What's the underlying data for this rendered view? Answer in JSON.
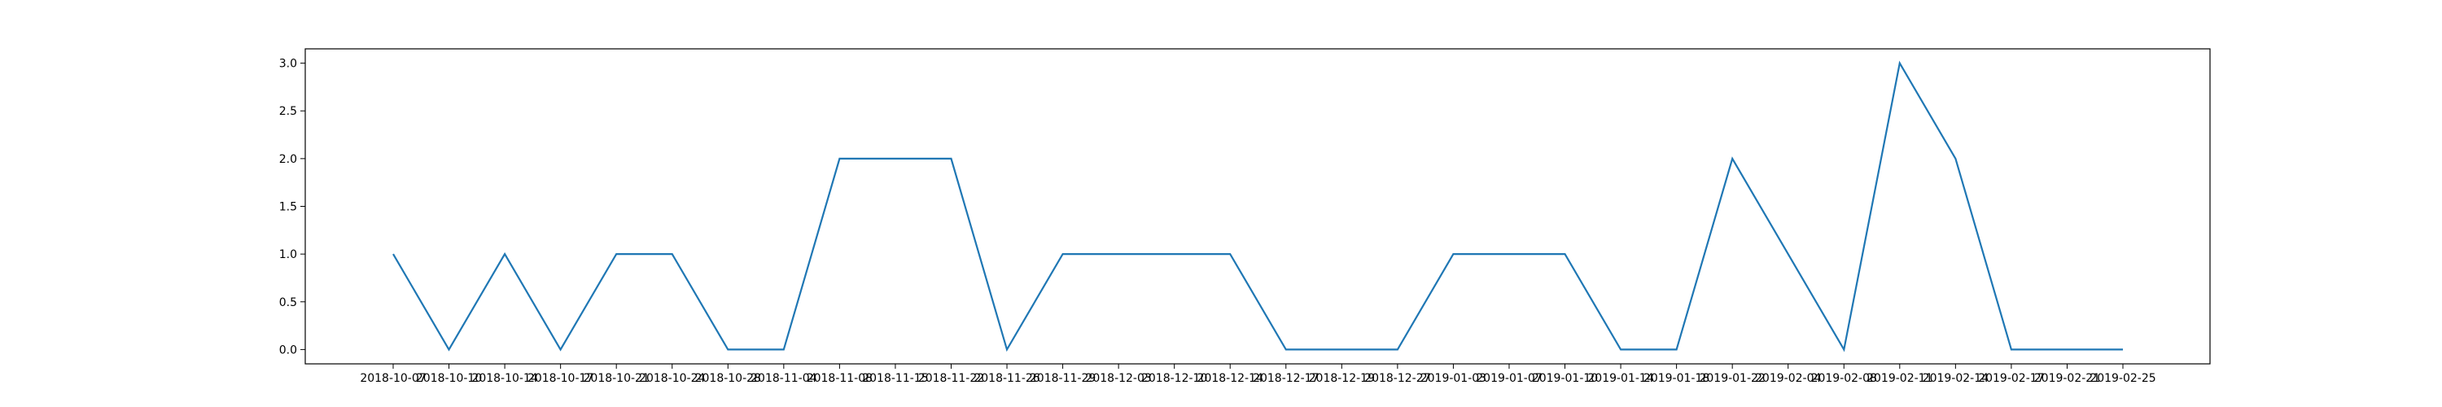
{
  "chart_data": {
    "type": "line",
    "title": "",
    "xlabel": "",
    "ylabel": "",
    "categories": [
      "2018-10-07",
      "2018-10-10",
      "2018-10-14",
      "2018-10-17",
      "2018-10-21",
      "2018-10-24",
      "2018-10-28",
      "2018-11-04",
      "2018-11-08",
      "2018-11-15",
      "2018-11-22",
      "2018-11-26",
      "2018-11-29",
      "2018-12-03",
      "2018-12-10",
      "2018-12-14",
      "2018-12-17",
      "2018-12-19",
      "2018-12-27",
      "2019-01-03",
      "2019-01-07",
      "2019-01-10",
      "2019-01-14",
      "2019-01-18",
      "2019-01-22",
      "2019-02-04",
      "2019-02-08",
      "2019-02-11",
      "2019-02-14",
      "2019-02-17",
      "2019-02-21",
      "2019-02-25"
    ],
    "series": [
      {
        "values": [
          1,
          0,
          1,
          0,
          1,
          1,
          0,
          0,
          2,
          2,
          2,
          0,
          1,
          1,
          1,
          1,
          0,
          0,
          0,
          1,
          1,
          1,
          0,
          0,
          2,
          1,
          0,
          3,
          2,
          0,
          0,
          0
        ],
        "color": "#1f77b4"
      }
    ],
    "ylim": [
      -0.15,
      3.15
    ],
    "yticks": [
      "0.0",
      "0.5",
      "1.0",
      "1.5",
      "2.0",
      "2.5",
      "3.0"
    ],
    "grid": false,
    "legend": "none"
  }
}
